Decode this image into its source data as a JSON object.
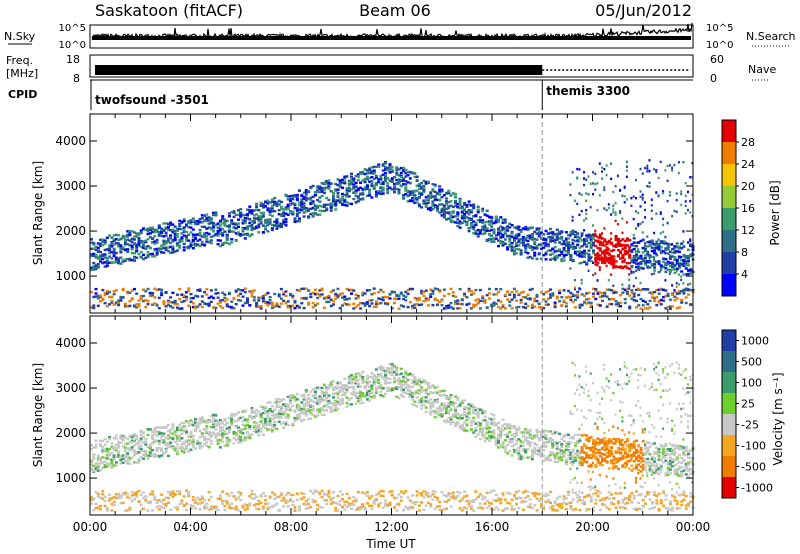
{
  "header": {
    "site": "Saskatoon (fitACF)",
    "beam": "Beam 06",
    "date": "05/Jun/2012"
  },
  "nsky_panel": {
    "left_label_1": "N.Sky",
    "right_label_1": "N.Search",
    "left_ticks": [
      "10^5",
      "10^0"
    ],
    "right_ticks": [
      "10^5",
      "10^0"
    ]
  },
  "freq_panel": {
    "left_label_1": "Freq.",
    "left_label_2": "[MHz]",
    "left_ticks": [
      "18",
      "8"
    ],
    "right_ticks": [
      "60",
      "0"
    ],
    "right_label_1": "Nave"
  },
  "cpid_panel": {
    "label": "CPID",
    "programs": [
      {
        "name": "twofsound -3501",
        "start_hour": 0
      },
      {
        "name": "themis 3300",
        "start_hour": 18
      }
    ]
  },
  "chart_data": [
    {
      "type": "heatmap",
      "name": "Power",
      "ylabel": "Slant Range [km]",
      "ylim": [
        180,
        4600
      ],
      "yticks": [
        1000,
        2000,
        3000,
        4000
      ],
      "colorbar_label": "Power [dB]",
      "colorbar_ticks": [
        4,
        8,
        12,
        16,
        20,
        24,
        28
      ],
      "colors": [
        "#0000ff",
        "#1f3fa6",
        "#2e6f87",
        "#3c9c6c",
        "#94cc37",
        "#f5c400",
        "#f07d00",
        "#e30000"
      ]
    },
    {
      "type": "heatmap",
      "name": "Velocity",
      "ylabel": "Slant Range [km]",
      "ylim": [
        180,
        4600
      ],
      "yticks": [
        1000,
        2000,
        3000,
        4000
      ],
      "colorbar_label": "Velocity [m s⁻¹]",
      "colorbar_ticks": [
        1000,
        500,
        100,
        25,
        -25,
        -100,
        -500,
        -1000
      ],
      "colors": [
        "#1f3fa6",
        "#2e6f87",
        "#3c9c6c",
        "#6fcf2c",
        "#c8c8c8",
        "#f5a623",
        "#f07d00",
        "#e30000"
      ],
      "xlabel": "Time UT",
      "xticks": [
        "00:00",
        "04:00",
        "08:00",
        "12:00",
        "16:00",
        "20:00",
        "00:00"
      ],
      "xlim_hours": [
        0,
        24
      ]
    }
  ]
}
